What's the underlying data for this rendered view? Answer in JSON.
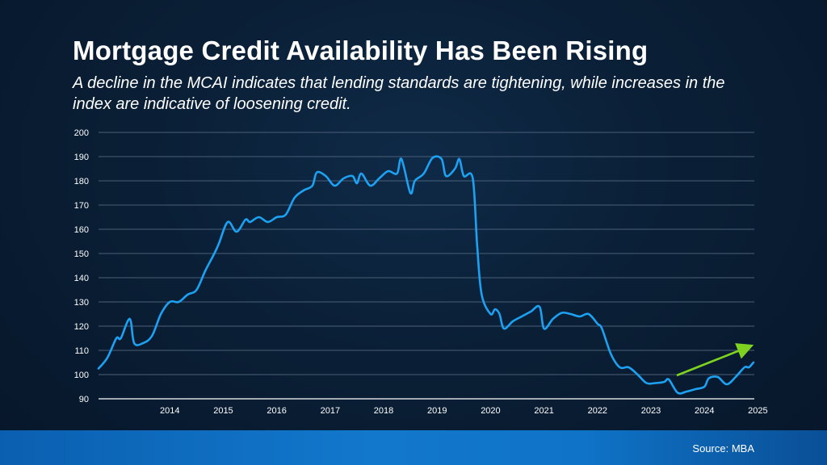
{
  "header": {
    "title": "Mortgage Credit Availability Has Been Rising",
    "subtitle": "A decline in the MCAI indicates that lending standards are tightening, while increases in the index are indicative of loosening credit."
  },
  "footer": {
    "source": "Source: MBA"
  },
  "colors": {
    "line": "#1da1f2",
    "trend_arrow": "#7ed321",
    "grid": "#4a5f78",
    "axis": "#ffffff"
  },
  "chart_data": {
    "type": "line",
    "title": "",
    "xlabel": "",
    "ylabel": "",
    "ylim": [
      90,
      200
    ],
    "yticks": [
      90,
      100,
      110,
      120,
      130,
      140,
      150,
      160,
      170,
      180,
      190,
      200
    ],
    "xticks": [
      "2014",
      "2015",
      "2016",
      "2017",
      "2018",
      "2019",
      "2020",
      "2021",
      "2022",
      "2023",
      "2024",
      "2025"
    ],
    "grid": true,
    "series": [
      {
        "values": [
          {
            "x": "2013-03",
            "y": 102.5
          },
          {
            "x": "2013-05",
            "y": 107
          },
          {
            "x": "2013-07",
            "y": 115
          },
          {
            "x": "2013-08",
            "y": 115
          },
          {
            "x": "2013-10",
            "y": 123
          },
          {
            "x": "2013-11",
            "y": 113
          },
          {
            "x": "2014-01",
            "y": 113
          },
          {
            "x": "2014-03",
            "y": 116
          },
          {
            "x": "2014-05",
            "y": 125
          },
          {
            "x": "2014-07",
            "y": 130
          },
          {
            "x": "2014-09",
            "y": 130
          },
          {
            "x": "2014-11",
            "y": 133
          },
          {
            "x": "2015-01",
            "y": 135
          },
          {
            "x": "2015-03",
            "y": 143
          },
          {
            "x": "2015-05",
            "y": 150
          },
          {
            "x": "2015-06",
            "y": 154
          },
          {
            "x": "2015-08",
            "y": 163
          },
          {
            "x": "2015-10",
            "y": 159
          },
          {
            "x": "2015-12",
            "y": 164
          },
          {
            "x": "2016-01",
            "y": 163
          },
          {
            "x": "2016-03",
            "y": 165
          },
          {
            "x": "2016-05",
            "y": 163
          },
          {
            "x": "2016-07",
            "y": 165
          },
          {
            "x": "2016-09",
            "y": 166
          },
          {
            "x": "2016-11",
            "y": 173
          },
          {
            "x": "2017-01",
            "y": 176
          },
          {
            "x": "2017-03",
            "y": 178
          },
          {
            "x": "2017-04",
            "y": 183.5
          },
          {
            "x": "2017-06",
            "y": 182
          },
          {
            "x": "2017-08",
            "y": 178
          },
          {
            "x": "2017-10",
            "y": 181
          },
          {
            "x": "2017-12",
            "y": 182
          },
          {
            "x": "2018-01",
            "y": 179
          },
          {
            "x": "2018-02",
            "y": 183
          },
          {
            "x": "2018-04",
            "y": 178
          },
          {
            "x": "2018-06",
            "y": 181
          },
          {
            "x": "2018-08",
            "y": 184
          },
          {
            "x": "2018-10",
            "y": 183
          },
          {
            "x": "2018-11",
            "y": 189
          },
          {
            "x": "2019-01",
            "y": 175
          },
          {
            "x": "2019-02",
            "y": 180
          },
          {
            "x": "2019-04",
            "y": 183
          },
          {
            "x": "2019-06",
            "y": 189.5
          },
          {
            "x": "2019-08",
            "y": 189
          },
          {
            "x": "2019-09",
            "y": 182
          },
          {
            "x": "2019-11",
            "y": 185
          },
          {
            "x": "2019-12",
            "y": 189
          },
          {
            "x": "2020-01",
            "y": 182
          },
          {
            "x": "2020-03",
            "y": 181
          },
          {
            "x": "2020-04",
            "y": 153
          },
          {
            "x": "2020-05",
            "y": 133
          },
          {
            "x": "2020-07",
            "y": 125
          },
          {
            "x": "2020-08",
            "y": 127
          },
          {
            "x": "2020-09",
            "y": 125
          },
          {
            "x": "2020-10",
            "y": 119
          },
          {
            "x": "2020-12",
            "y": 122
          },
          {
            "x": "2021-02",
            "y": 124
          },
          {
            "x": "2021-04",
            "y": 126
          },
          {
            "x": "2021-06",
            "y": 128
          },
          {
            "x": "2021-07",
            "y": 119
          },
          {
            "x": "2021-09",
            "y": 123
          },
          {
            "x": "2021-11",
            "y": 125.5
          },
          {
            "x": "2022-01",
            "y": 125
          },
          {
            "x": "2022-03",
            "y": 124
          },
          {
            "x": "2022-05",
            "y": 125
          },
          {
            "x": "2022-07",
            "y": 121
          },
          {
            "x": "2022-08",
            "y": 119
          },
          {
            "x": "2022-10",
            "y": 108.5
          },
          {
            "x": "2022-12",
            "y": 103
          },
          {
            "x": "2023-02",
            "y": 103
          },
          {
            "x": "2023-04",
            "y": 100
          },
          {
            "x": "2023-06",
            "y": 96.5
          },
          {
            "x": "2023-08",
            "y": 96.5
          },
          {
            "x": "2023-10",
            "y": 97
          },
          {
            "x": "2023-11",
            "y": 98
          },
          {
            "x": "2024-01",
            "y": 92.5
          },
          {
            "x": "2024-03",
            "y": 93
          },
          {
            "x": "2024-05",
            "y": 94
          },
          {
            "x": "2024-07",
            "y": 95
          },
          {
            "x": "2024-08",
            "y": 98.5
          },
          {
            "x": "2024-10",
            "y": 99
          },
          {
            "x": "2024-12",
            "y": 96
          },
          {
            "x": "2025-02",
            "y": 99
          },
          {
            "x": "2025-04",
            "y": 103
          },
          {
            "x": "2025-05",
            "y": 103
          },
          {
            "x": "2025-06",
            "y": 105
          }
        ]
      }
    ]
  }
}
